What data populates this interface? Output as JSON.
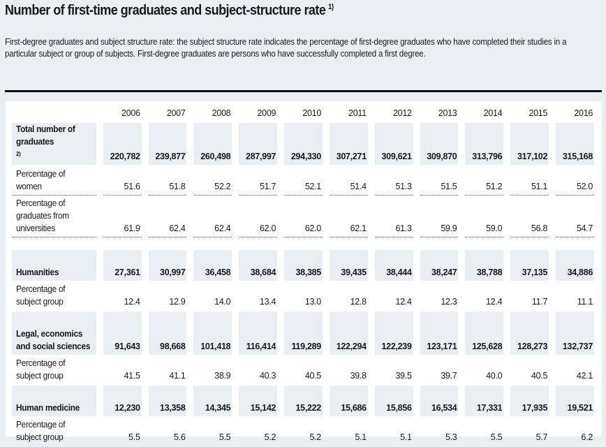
{
  "title": "Number of first-time graduates and subject-structure rate",
  "title_note": "1)",
  "description": "First-degree graduates and subject structure rate: the subject structure rate indicates the percentage of first-degree graduates who have completed their studies in a particular subject or group of subjects. First-degree graduates are persons who have successfully completed a first degree.",
  "table": {
    "years": [
      "2006",
      "2007",
      "2008",
      "2009",
      "2010",
      "2011",
      "2012",
      "2013",
      "2014",
      "2015",
      "2016"
    ],
    "rows": [
      {
        "label": "Total number of graduates",
        "note": "2)",
        "style": "shaded",
        "height": 42,
        "values": [
          "220,782",
          "239,877",
          "260,498",
          "287,997",
          "294,330",
          "307,271",
          "309,621",
          "309,870",
          "313,796",
          "317,102",
          "315,168"
        ]
      },
      {
        "label": "Percentage of women",
        "style": "dotted",
        "height": 42,
        "values": [
          "51.6",
          "51.8",
          "52.2",
          "51.7",
          "52.1",
          "51.4",
          "51.3",
          "51.5",
          "51.2",
          "51.1",
          "52.0"
        ]
      },
      {
        "label": "Percentage of graduates from universities",
        "style": "dotted",
        "height": 57,
        "values": [
          "61.9",
          "62.4",
          "62.4",
          "62.0",
          "62.0",
          "62.1",
          "61.3",
          "59.9",
          "59.0",
          "56.8",
          "54.7"
        ]
      },
      {
        "label": "",
        "style": "spacer",
        "height": 14,
        "values": []
      },
      {
        "label": "Humanities",
        "style": "shaded",
        "height": 44,
        "values": [
          "27,361",
          "30,997",
          "36,458",
          "38,684",
          "38,385",
          "39,435",
          "38,444",
          "38,247",
          "38,788",
          "37,135",
          "34,886"
        ]
      },
      {
        "label": "Percentage of subject group",
        "style": "plain",
        "height": 40,
        "values": [
          "12.4",
          "12.9",
          "14.0",
          "13.4",
          "13.0",
          "12.8",
          "12.4",
          "12.3",
          "12.4",
          "11.7",
          "11.1"
        ]
      },
      {
        "label": "Legal, economics and social sciences",
        "style": "shaded",
        "height": 62,
        "values": [
          "91,643",
          "98,668",
          "101,418",
          "116,414",
          "119,289",
          "122,294",
          "122,239",
          "123,171",
          "125,628",
          "128,273",
          "132,737"
        ]
      },
      {
        "label": "Percentage of subject group",
        "style": "plain",
        "height": 40,
        "values": [
          "41.5",
          "41.1",
          "38.9",
          "40.3",
          "40.5",
          "39.8",
          "39.5",
          "39.7",
          "40.0",
          "40.5",
          "42.1"
        ]
      },
      {
        "label": "Human medicine",
        "style": "shaded",
        "height": 44,
        "values": [
          "12,230",
          "13,358",
          "14,345",
          "15,142",
          "15,222",
          "15,686",
          "15,856",
          "16,534",
          "17,331",
          "17,935",
          "19,521"
        ]
      },
      {
        "label": "Percentage of subject group",
        "style": "plain",
        "height": 40,
        "values": [
          "5.5",
          "5.6",
          "5.5",
          "5.2",
          "5.2",
          "5.1",
          "5.1",
          "5.3",
          "5.5",
          "5.7",
          "6.2"
        ]
      }
    ]
  }
}
